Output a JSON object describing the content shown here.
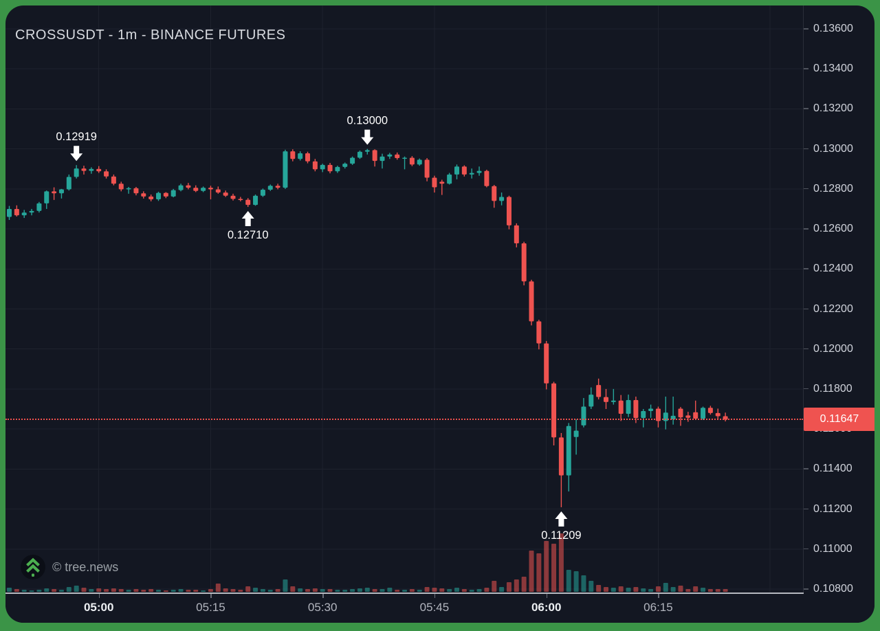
{
  "colors": {
    "frame_border": "#3b9447",
    "panel_bg": "#131722",
    "grid": "#1e222d",
    "axis_line": "#2a2e39",
    "axis_text": "#d1d4dc",
    "up": "#26a69a",
    "down": "#ef5350",
    "volume_up": "rgba(38,166,154,0.55)",
    "volume_down": "rgba(239,83,80,0.55)",
    "last_price": "#ef5350",
    "marker": "#ffffff"
  },
  "header": {
    "title": "CROSSUSDT - 1m - BINANCE FUTURES"
  },
  "watermark": {
    "label": "© tree.news",
    "icon": "tree-chevrons-icon",
    "icon_color": "#4caf50"
  },
  "price_axis": {
    "min": 0.108,
    "max": 0.136,
    "tick_step": 0.002,
    "ticks": [
      {
        "value": 0.136,
        "label": "0.13600"
      },
      {
        "value": 0.134,
        "label": "0.13400"
      },
      {
        "value": 0.132,
        "label": "0.13200"
      },
      {
        "value": 0.13,
        "label": "0.13000"
      },
      {
        "value": 0.128,
        "label": "0.12800"
      },
      {
        "value": 0.126,
        "label": "0.12600"
      },
      {
        "value": 0.124,
        "label": "0.12400"
      },
      {
        "value": 0.122,
        "label": "0.12200"
      },
      {
        "value": 0.12,
        "label": "0.12000"
      },
      {
        "value": 0.118,
        "label": "0.11800"
      },
      {
        "value": 0.116,
        "label": "0.11600"
      },
      {
        "value": 0.114,
        "label": "0.11400"
      },
      {
        "value": 0.112,
        "label": "0.11200"
      },
      {
        "value": 0.11,
        "label": "0.11000"
      },
      {
        "value": 0.108,
        "label": "0.10800"
      }
    ]
  },
  "time_axis": {
    "labels": [
      {
        "text": "05:00",
        "bold": true,
        "index": 12
      },
      {
        "text": "05:15",
        "bold": false,
        "index": 27
      },
      {
        "text": "05:30",
        "bold": false,
        "index": 42
      },
      {
        "text": "05:45",
        "bold": false,
        "index": 57
      },
      {
        "text": "06:00",
        "bold": true,
        "index": 72
      },
      {
        "text": "06:15",
        "bold": false,
        "index": 87
      }
    ],
    "extra_gridline_index": 102
  },
  "last_price": {
    "label": "0.11647",
    "value": 0.11647
  },
  "chart_data": {
    "type": "candlestick",
    "symbol": "CROSSUSDT",
    "interval": "1m",
    "exchange": "BINANCE FUTURES",
    "title": "CROSSUSDT - 1m - BINANCE FUTURES",
    "price_range": [
      0.108,
      0.136
    ],
    "x_start_time": "04:48",
    "x_end_time": "06:24",
    "legend_position": "none",
    "grid": true,
    "columns": [
      "time",
      "open",
      "high",
      "low",
      "close",
      "volume"
    ],
    "candles": [
      [
        "04:48",
        0.1266,
        0.12715,
        0.12645,
        0.127,
        6
      ],
      [
        "04:49",
        0.127,
        0.12718,
        0.12662,
        0.12668,
        4
      ],
      [
        "04:50",
        0.12668,
        0.12695,
        0.12655,
        0.12682,
        3
      ],
      [
        "04:51",
        0.12682,
        0.127,
        0.12668,
        0.1269,
        2
      ],
      [
        "04:52",
        0.1269,
        0.12735,
        0.12682,
        0.12728,
        3
      ],
      [
        "04:53",
        0.12728,
        0.12792,
        0.127,
        0.12788,
        5
      ],
      [
        "04:54",
        0.12788,
        0.12808,
        0.12745,
        0.12778,
        4
      ],
      [
        "04:55",
        0.12778,
        0.128,
        0.12752,
        0.12798,
        3
      ],
      [
        "04:56",
        0.12798,
        0.12872,
        0.12792,
        0.1286,
        7
      ],
      [
        "04:57",
        0.1286,
        0.12919,
        0.12852,
        0.12902,
        9
      ],
      [
        "04:58",
        0.12902,
        0.12916,
        0.12872,
        0.1289,
        6
      ],
      [
        "04:59",
        0.1289,
        0.12908,
        0.12876,
        0.129,
        4
      ],
      [
        "05:00",
        0.129,
        0.12914,
        0.1288,
        0.12888,
        5
      ],
      [
        "05:01",
        0.12888,
        0.12898,
        0.12852,
        0.12862,
        4
      ],
      [
        "05:02",
        0.12862,
        0.12872,
        0.12818,
        0.12826,
        5
      ],
      [
        "05:03",
        0.12826,
        0.12836,
        0.12788,
        0.12798,
        4
      ],
      [
        "05:04",
        0.12798,
        0.1281,
        0.12776,
        0.12804,
        3
      ],
      [
        "05:05",
        0.12804,
        0.1281,
        0.12768,
        0.12778,
        4
      ],
      [
        "05:06",
        0.12778,
        0.12788,
        0.12752,
        0.12762,
        3
      ],
      [
        "05:07",
        0.12762,
        0.12772,
        0.12738,
        0.12748,
        4
      ],
      [
        "05:08",
        0.12748,
        0.12786,
        0.1274,
        0.1278,
        3
      ],
      [
        "05:09",
        0.1278,
        0.12784,
        0.12754,
        0.12762,
        2
      ],
      [
        "05:10",
        0.12762,
        0.128,
        0.12758,
        0.12794,
        3
      ],
      [
        "05:11",
        0.12794,
        0.12826,
        0.12788,
        0.12818,
        4
      ],
      [
        "05:12",
        0.12818,
        0.1283,
        0.12798,
        0.12806,
        3
      ],
      [
        "05:13",
        0.12806,
        0.12818,
        0.12784,
        0.1279,
        3
      ],
      [
        "05:14",
        0.1279,
        0.12812,
        0.12784,
        0.12806,
        2
      ],
      [
        "05:15",
        0.12806,
        0.12816,
        0.12748,
        0.12798,
        4
      ],
      [
        "05:16",
        0.12798,
        0.12812,
        0.12776,
        0.12782,
        12
      ],
      [
        "05:17",
        0.12782,
        0.12792,
        0.1276,
        0.12766,
        5
      ],
      [
        "05:18",
        0.12766,
        0.12776,
        0.12742,
        0.1275,
        4
      ],
      [
        "05:19",
        0.1275,
        0.1276,
        0.12738,
        0.12746,
        3
      ],
      [
        "05:20",
        0.12746,
        0.12754,
        0.1271,
        0.1272,
        8
      ],
      [
        "05:21",
        0.1272,
        0.12772,
        0.12716,
        0.12766,
        6
      ],
      [
        "05:22",
        0.12766,
        0.12802,
        0.1276,
        0.12796,
        4
      ],
      [
        "05:23",
        0.12796,
        0.12822,
        0.1279,
        0.12816,
        3
      ],
      [
        "05:24",
        0.12816,
        0.12826,
        0.12798,
        0.12806,
        4
      ],
      [
        "05:25",
        0.12806,
        0.12996,
        0.128,
        0.12988,
        18
      ],
      [
        "05:26",
        0.12988,
        0.12998,
        0.12938,
        0.1295,
        8
      ],
      [
        "05:27",
        0.1295,
        0.12988,
        0.12942,
        0.12978,
        5
      ],
      [
        "05:28",
        0.12978,
        0.12986,
        0.12928,
        0.12938,
        4
      ],
      [
        "05:29",
        0.12938,
        0.1295,
        0.12888,
        0.12898,
        5
      ],
      [
        "05:30",
        0.12898,
        0.12926,
        0.12884,
        0.1292,
        4
      ],
      [
        "05:31",
        0.1292,
        0.1293,
        0.12878,
        0.12888,
        4
      ],
      [
        "05:32",
        0.12888,
        0.12916,
        0.1288,
        0.1291,
        3
      ],
      [
        "05:33",
        0.1291,
        0.12932,
        0.12902,
        0.12926,
        3
      ],
      [
        "05:34",
        0.12926,
        0.12962,
        0.1292,
        0.12956,
        4
      ],
      [
        "05:35",
        0.12956,
        0.12992,
        0.1295,
        0.12986,
        5
      ],
      [
        "05:36",
        0.12986,
        0.13,
        0.12972,
        0.12994,
        6
      ],
      [
        "05:37",
        0.12994,
        0.12998,
        0.12912,
        0.1294,
        4
      ],
      [
        "05:38",
        0.1294,
        0.12976,
        0.12902,
        0.12962,
        4
      ],
      [
        "05:39",
        0.12962,
        0.1298,
        0.1295,
        0.12972,
        6
      ],
      [
        "05:40",
        0.12972,
        0.12982,
        0.12946,
        0.12954,
        3
      ],
      [
        "05:41",
        0.12954,
        0.12962,
        0.12898,
        0.12956,
        3
      ],
      [
        "05:42",
        0.12956,
        0.12964,
        0.12914,
        0.12922,
        4
      ],
      [
        "05:43",
        0.12922,
        0.12952,
        0.12916,
        0.12946,
        3
      ],
      [
        "05:44",
        0.12946,
        0.12954,
        0.12838,
        0.12856,
        7
      ],
      [
        "05:45",
        0.12856,
        0.12866,
        0.12782,
        0.12808,
        6
      ],
      [
        "05:46",
        0.12836,
        0.12846,
        0.1277,
        0.12826,
        5
      ],
      [
        "05:47",
        0.12826,
        0.1288,
        0.12822,
        0.12872,
        4
      ],
      [
        "05:48",
        0.12872,
        0.12922,
        0.12848,
        0.12912,
        6
      ],
      [
        "05:49",
        0.12912,
        0.12918,
        0.12862,
        0.12872,
        4
      ],
      [
        "05:50",
        0.12872,
        0.12902,
        0.12852,
        0.1288,
        3
      ],
      [
        "05:51",
        0.1288,
        0.12912,
        0.12866,
        0.1289,
        4
      ],
      [
        "05:52",
        0.1289,
        0.12896,
        0.12808,
        0.12814,
        6
      ],
      [
        "05:53",
        0.12814,
        0.1282,
        0.12706,
        0.1274,
        16
      ],
      [
        "05:54",
        0.1274,
        0.12782,
        0.12718,
        0.1276,
        7
      ],
      [
        "05:55",
        0.1276,
        0.12766,
        0.12598,
        0.12618,
        14
      ],
      [
        "05:56",
        0.12618,
        0.12628,
        0.12508,
        0.12528,
        18
      ],
      [
        "05:57",
        0.12528,
        0.12536,
        0.12318,
        0.12338,
        22
      ],
      [
        "05:58",
        0.12338,
        0.12346,
        0.12118,
        0.12138,
        60
      ],
      [
        "05:59",
        0.12138,
        0.12146,
        0.11998,
        0.12028,
        56
      ],
      [
        "06:00",
        0.12028,
        0.1204,
        0.11798,
        0.11828,
        74
      ],
      [
        "06:01",
        0.11828,
        0.11836,
        0.11518,
        0.11558,
        70
      ],
      [
        "06:02",
        0.11558,
        0.1158,
        0.11209,
        0.11368,
        85
      ],
      [
        "06:03",
        0.11368,
        0.1163,
        0.11288,
        0.11615,
        32
      ],
      [
        "06:04",
        0.1156,
        0.11648,
        0.11472,
        0.11592,
        30
      ],
      [
        "06:05",
        0.11618,
        0.11755,
        0.11608,
        0.11712,
        24
      ],
      [
        "06:06",
        0.11712,
        0.11808,
        0.117,
        0.11772,
        16
      ],
      [
        "06:07",
        0.1182,
        0.11852,
        0.11748,
        0.1176,
        10
      ],
      [
        "06:08",
        0.1176,
        0.118,
        0.117,
        0.11735,
        7
      ],
      [
        "06:09",
        0.11735,
        0.118,
        0.11722,
        0.11742,
        6
      ],
      [
        "06:10",
        0.11742,
        0.1177,
        0.1164,
        0.11676,
        8
      ],
      [
        "06:11",
        0.11676,
        0.11772,
        0.1166,
        0.11745,
        6
      ],
      [
        "06:12",
        0.11745,
        0.11762,
        0.1163,
        0.11655,
        7
      ],
      [
        "06:13",
        0.11655,
        0.117,
        0.11608,
        0.1169,
        5
      ],
      [
        "06:14",
        0.1169,
        0.11722,
        0.11656,
        0.11702,
        4
      ],
      [
        "06:15",
        0.11702,
        0.11712,
        0.11608,
        0.1164,
        8
      ],
      [
        "06:16",
        0.1164,
        0.11762,
        0.11598,
        0.11682,
        13
      ],
      [
        "06:17",
        0.11648,
        0.11762,
        0.11622,
        0.11666,
        7
      ],
      [
        "06:18",
        0.11702,
        0.1171,
        0.11616,
        0.11658,
        9
      ],
      [
        "06:19",
        0.11668,
        0.11686,
        0.11636,
        0.11656,
        4
      ],
      [
        "06:20",
        0.11684,
        0.11742,
        0.11645,
        0.11652,
        8
      ],
      [
        "06:21",
        0.11652,
        0.11712,
        0.11645,
        0.11706,
        6
      ],
      [
        "06:22",
        0.11706,
        0.11716,
        0.11672,
        0.1168,
        4
      ],
      [
        "06:23",
        0.1168,
        0.11702,
        0.11652,
        0.11664,
        4
      ],
      [
        "06:24",
        0.11664,
        0.11682,
        0.11638,
        0.11647,
        4
      ]
    ],
    "markers": [
      {
        "time": "04:57",
        "price": 0.12919,
        "label": "0.12919",
        "side": "above",
        "arrow": "down"
      },
      {
        "time": "05:20",
        "price": 0.1271,
        "label": "0.12710",
        "side": "below",
        "arrow": "up"
      },
      {
        "time": "05:36",
        "price": 0.13,
        "label": "0.13000",
        "side": "above",
        "arrow": "down"
      },
      {
        "time": "06:02",
        "price": 0.11209,
        "label": "0.11209",
        "side": "below",
        "arrow": "up"
      }
    ],
    "last_close": 0.11647
  }
}
